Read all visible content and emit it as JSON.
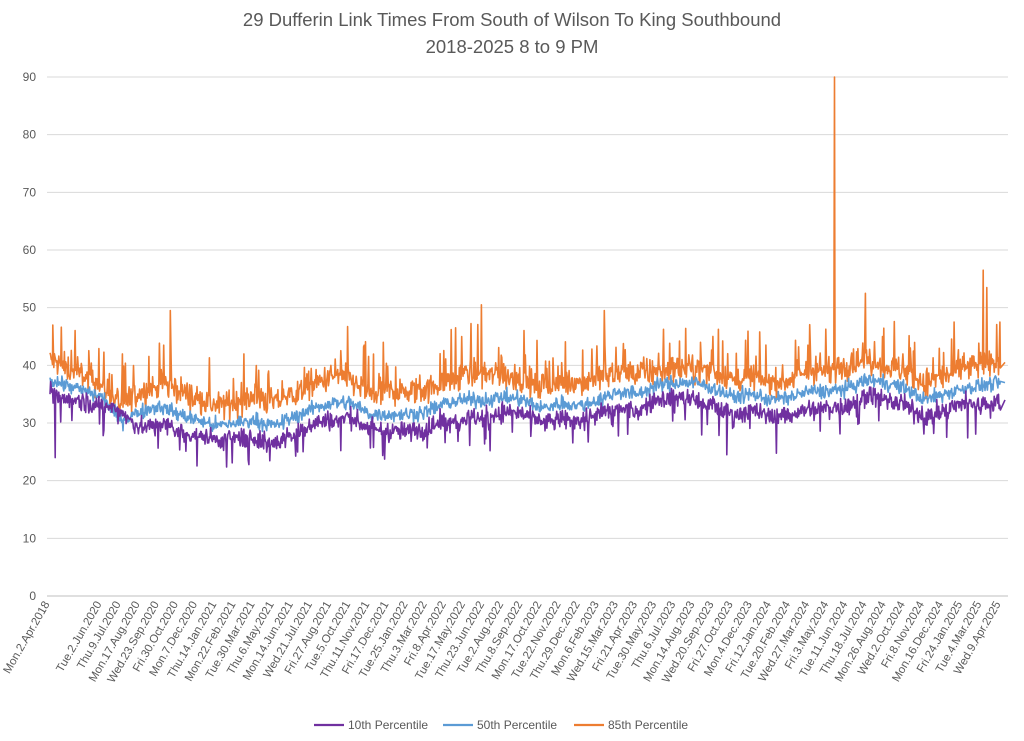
{
  "chart_data": {
    "type": "line",
    "title": "29 Dufferin Link Times From South of Wilson To King Southbound",
    "subtitle": "2018-2025 8 to 9 PM",
    "xlabel": "",
    "ylabel": "",
    "ylim": [
      0,
      90
    ],
    "yticks": [
      0,
      10,
      20,
      30,
      40,
      50,
      60,
      70,
      80,
      90
    ],
    "grid": true,
    "legend_position": "bottom",
    "x_start": "2018-04-02",
    "x_end": "2025-04-22",
    "categories": [
      "Mon.2.Apr.2018",
      "Tue.2.Jun.2020",
      "Thu.9.Jul.2020",
      "Mon.17.Aug.2020",
      "Wed.23.Sep.2020",
      "Fri.30.Oct.2020",
      "Mon.7.Dec.2020",
      "Thu.14.Jan.2021",
      "Mon.22.Feb.2021",
      "Tue.30.Mar.2021",
      "Thu.6.May.2021",
      "Mon.14.Jun.2021",
      "Wed.21.Jul.2021",
      "Fri.27.Aug.2021",
      "Tue.5.Oct.2021",
      "Thu.11.Nov.2021",
      "Fri.17.Dec.2021",
      "Tue.25.Jan.2022",
      "Thu.3.Mar.2022",
      "Fri.8.Apr.2022",
      "Tue.17.May.2022",
      "Thu.23.Jun.2022",
      "Tue.2.Aug.2022",
      "Thu.8.Sep.2022",
      "Mon.17.Oct.2022",
      "Tue.22.Nov.2022",
      "Thu.29.Dec.2022",
      "Mon.6.Feb.2023",
      "Wed.15.Mar.2023",
      "Fri.21.Apr.2023",
      "Tue.30.May.2023",
      "Thu.6.Jul.2023",
      "Mon.14.Aug.2023",
      "Wed.20.Sep.2023",
      "Fri.27.Oct.2023",
      "Mon.4.Dec.2023",
      "Fri.12.Jan.2024",
      "Tue.20.Feb.2024",
      "Wed.27.Mar.2024",
      "Fri.3.May.2024",
      "Tue.11.Jun.2024",
      "Thu.18.Jul.2024",
      "Mon.26.Aug.2024",
      "Wed.2.Oct.2024",
      "Fri.8.Nov.2024",
      "Mon.16.Dec.2024",
      "Fri.24.Jan.2025",
      "Tue.4.Mar.2025",
      "Wed.9.Apr.2025"
    ],
    "series": [
      {
        "name": "10th Percentile",
        "color": "#7030a0",
        "values": [
          35,
          33,
          32,
          29,
          30,
          28.5,
          28,
          27,
          27.5,
          27.5,
          26.5,
          28,
          30,
          30.5,
          31,
          29,
          28.5,
          28.5,
          29,
          30.5,
          31,
          31,
          32,
          31.5,
          30,
          30.5,
          30.5,
          31.5,
          32.5,
          32,
          34,
          34.5,
          34,
          33,
          31.5,
          32,
          31,
          31.5,
          32.5,
          32.5,
          33,
          35,
          34,
          33,
          31,
          32,
          33.5,
          33,
          34
        ]
      },
      {
        "name": "50th Percentile",
        "color": "#5b9bd5",
        "values": [
          37.5,
          34.5,
          30.5,
          32,
          33,
          31.5,
          30.5,
          29.5,
          30,
          30.5,
          29.5,
          31,
          32.5,
          33.5,
          33.5,
          31.5,
          31.5,
          31.5,
          32,
          33.5,
          34,
          34,
          34.5,
          34,
          32.5,
          33.5,
          33,
          34,
          35.5,
          35,
          36.5,
          37,
          37,
          36,
          34.5,
          35,
          34,
          34.5,
          35.5,
          35.5,
          36,
          37.5,
          37,
          36,
          34,
          35,
          36,
          36.5,
          37
        ]
      },
      {
        "name": "85th Percentile",
        "color": "#ed7d31",
        "values": [
          41,
          36.5,
          33,
          35.5,
          36.5,
          36,
          34,
          33,
          33.5,
          34.5,
          33.5,
          35,
          36.5,
          38,
          37.5,
          35,
          35.5,
          35,
          36,
          37.5,
          38.5,
          38.5,
          38,
          37.5,
          36,
          37,
          37,
          38,
          39,
          38.5,
          39,
          39.5,
          39.5,
          39,
          37.5,
          38,
          37,
          37.5,
          39,
          39,
          40,
          41,
          40,
          39,
          37,
          38,
          39.5,
          40,
          40.5
        ]
      }
    ],
    "peaks": [
      {
        "series": "85th Percentile",
        "date": "2018-05-15",
        "value": 47
      },
      {
        "series": "85th Percentile",
        "date": "2020-10-15",
        "value": 49.5
      },
      {
        "series": "85th Percentile",
        "date": "2021-12-10",
        "value": 44
      },
      {
        "series": "85th Percentile",
        "date": "2022-06-22",
        "value": 50.5
      },
      {
        "series": "85th Percentile",
        "date": "2023-02-20",
        "value": 49.5
      },
      {
        "series": "85th Percentile",
        "date": "2024-05-20",
        "value": 90
      },
      {
        "series": "85th Percentile",
        "date": "2024-07-20",
        "value": 52.5
      },
      {
        "series": "85th Percentile",
        "date": "2025-03-10",
        "value": 56.5
      },
      {
        "series": "85th Percentile",
        "date": "2025-03-17",
        "value": 53.5
      },
      {
        "series": "85th Percentile",
        "date": "2025-04-12",
        "value": 47.5
      },
      {
        "series": "10th Percentile",
        "date": "2023-10-20",
        "value": 24.5
      },
      {
        "series": "10th Percentile",
        "date": "2018-06-20",
        "value": 24
      }
    ]
  }
}
